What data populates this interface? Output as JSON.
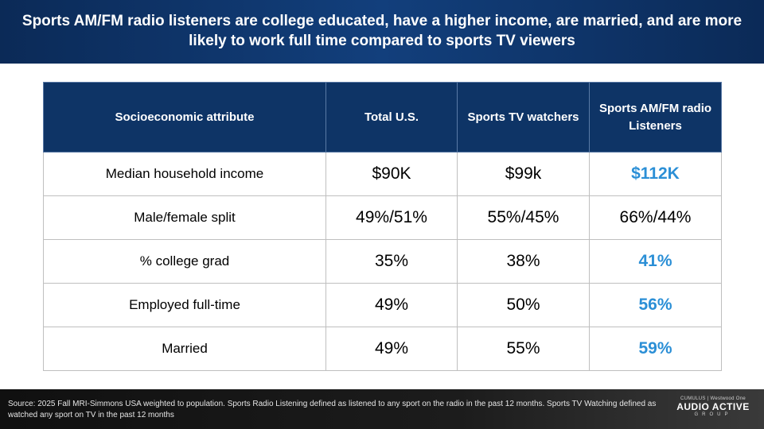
{
  "title": "Sports AM/FM radio listeners are college educated, have a higher income, are married, and are more likely to work full time compared to sports TV viewers",
  "table": {
    "headers": [
      "Socioeconomic attribute",
      "Total U.S.",
      "Sports TV watchers",
      "Sports AM/FM radio Listeners"
    ],
    "rows": [
      {
        "attribute": "Median household income",
        "total": "$90K",
        "tv": "$99k",
        "radio": "$112K"
      },
      {
        "attribute": "Male/female split",
        "total": "49%/51%",
        "tv": "55%/45%",
        "radio": "66%/44%"
      },
      {
        "attribute": "% college grad",
        "total": "35%",
        "tv": "38%",
        "radio": "41%"
      },
      {
        "attribute": "Employed full-time",
        "total": "49%",
        "tv": "50%",
        "radio": "56%"
      },
      {
        "attribute": "Married",
        "total": "49%",
        "tv": "55%",
        "radio": "59%"
      }
    ]
  },
  "footer": {
    "source": "Source: 2025 Fall MRI-Simmons USA weighted to population. Sports Radio Listening defined as listened to any sport on the radio in the past 12 months. Sports TV Watching defined as watched any sport on TV in the past 12 months",
    "logo_top": "CUMULUS | Westwood One",
    "logo_main": "AUDIO ACTIVE",
    "logo_sub": "GROUP"
  },
  "colors": {
    "header_bg": "#0e3466",
    "highlight": "#2b8fd6"
  }
}
